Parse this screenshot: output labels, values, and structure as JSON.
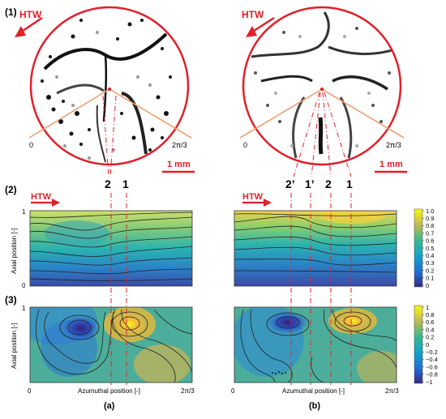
{
  "panel_labels": {
    "row1": "(1)",
    "row2": "(2)",
    "row3": "(3)",
    "col_a": "(a)",
    "col_b": "(b)"
  },
  "flow_label": "HTW",
  "scale_bar": "1 mm",
  "angle_zero": "0",
  "angle_max": "2π/3",
  "markers_a": [
    "2",
    "1"
  ],
  "markers_b": [
    "2’",
    "1’",
    "2",
    "1"
  ],
  "axes": {
    "ylabel": "Axial position [-]",
    "xlabel": "Azumuthal position [-]",
    "y_top": "1",
    "y_bottom": "0",
    "x_left": "0",
    "x_right": "2π/3"
  },
  "colorbar_top": {
    "ticks": [
      "1.0",
      "0.9",
      "0.8",
      "0.7",
      "0.6",
      "0.5",
      "0.4",
      "0.3",
      "0.2",
      "0.1",
      "0"
    ]
  },
  "colorbar_bottom": {
    "ticks": [
      "1",
      "0.8",
      "0.6",
      "0.4",
      "0.2",
      "0",
      "−0.2",
      "−0.4",
      "−0.6",
      "−0.8",
      "−1"
    ]
  },
  "colors": {
    "accent": "#e0202a",
    "wedge": "#f0a070",
    "marker": "#e0202a"
  }
}
